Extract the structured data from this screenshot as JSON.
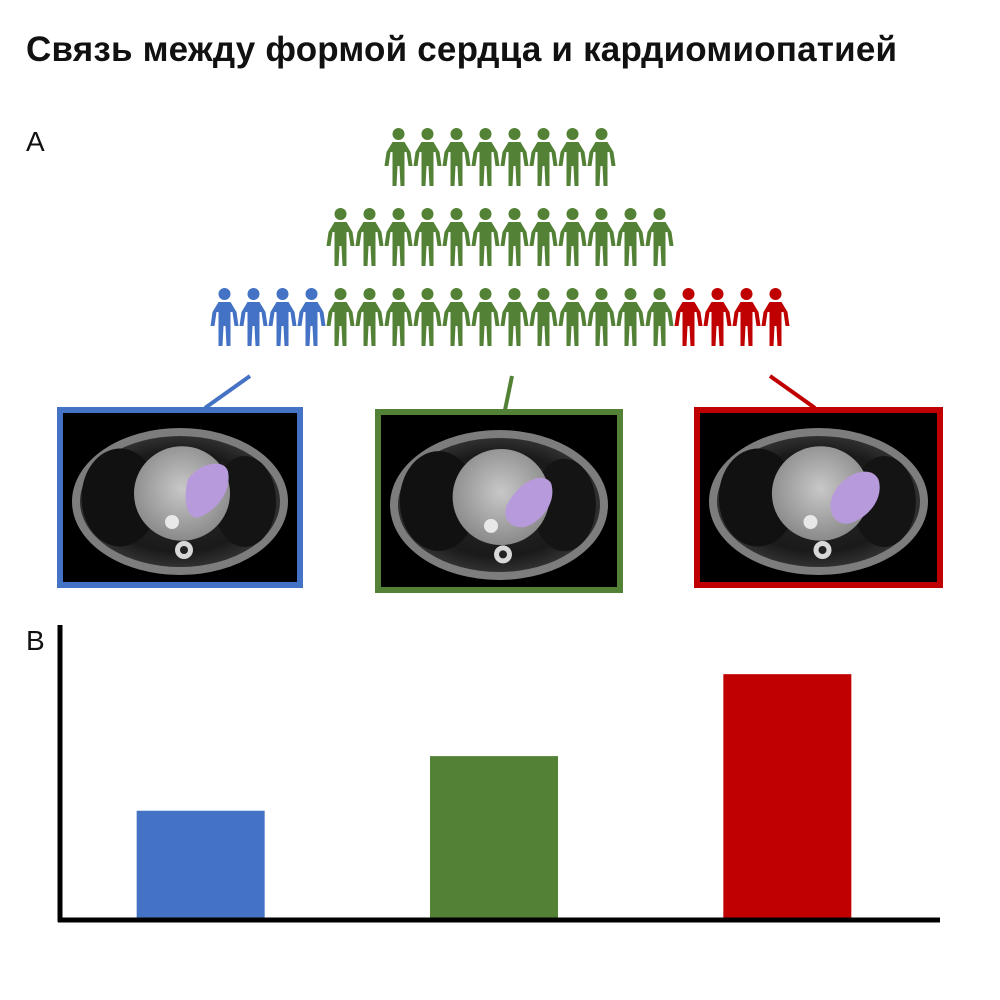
{
  "title": "Связь между формой сердца и кардиомиопатией",
  "panels": {
    "a": "A",
    "b": "B"
  },
  "colors": {
    "blue": "#4472C4",
    "green": "#538135",
    "red": "#C00000",
    "ventricle": "#B79ADB",
    "axis": "#000000"
  },
  "population": {
    "rows": [
      {
        "count": 8,
        "group": "green"
      },
      {
        "count": 12,
        "group": "green"
      },
      {
        "count": 20,
        "groups": [
          {
            "color": "blue",
            "count": 4
          },
          {
            "color": "green",
            "count": 12
          },
          {
            "color": "red",
            "count": 4
          }
        ]
      }
    ]
  },
  "mri_panels": [
    {
      "group": "blue",
      "icon": "heart-mri-icon"
    },
    {
      "group": "green",
      "icon": "heart-mri-icon"
    },
    {
      "group": "red",
      "icon": "heart-mri-icon"
    }
  ],
  "chart_data": {
    "type": "bar",
    "categories": [
      "",
      "",
      ""
    ],
    "values": [
      1.0,
      1.5,
      2.25
    ],
    "colors": [
      "#4472C4",
      "#538135",
      "#C00000"
    ],
    "title": "",
    "xlabel": "",
    "ylabel": "",
    "ylim": [
      0,
      2.7
    ],
    "grid": false,
    "legend": "none"
  }
}
